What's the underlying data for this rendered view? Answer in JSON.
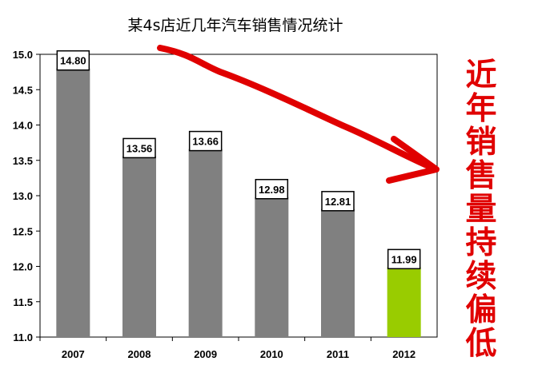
{
  "chart_data": {
    "type": "bar",
    "title": "某4s店近几年汽车销售情况统计",
    "xlabel": "",
    "ylabel": "",
    "categories": [
      "2007",
      "2008",
      "2009",
      "2010",
      "2011",
      "2012"
    ],
    "values": [
      14.8,
      13.56,
      13.66,
      12.98,
      12.81,
      11.99
    ],
    "data_labels": [
      "14.80",
      "13.56",
      "13.66",
      "12.98",
      "12.81",
      "11.99"
    ],
    "ylim": [
      11.0,
      15.0
    ],
    "yticks": [
      "11.0",
      "11.5",
      "12.0",
      "12.5",
      "13.0",
      "13.5",
      "14.0",
      "14.5",
      "15.0"
    ],
    "grid": false,
    "legend": "none",
    "colors": {
      "bar_default": "#808080",
      "bar_highlight": "#99cc00",
      "highlight_index": 5,
      "arrow": "#e00000"
    },
    "annotation": {
      "type": "arrow",
      "direction": "down-right",
      "text": [
        "近",
        "年",
        "销",
        "售",
        "量",
        "持",
        "续",
        "偏",
        "低"
      ]
    }
  }
}
